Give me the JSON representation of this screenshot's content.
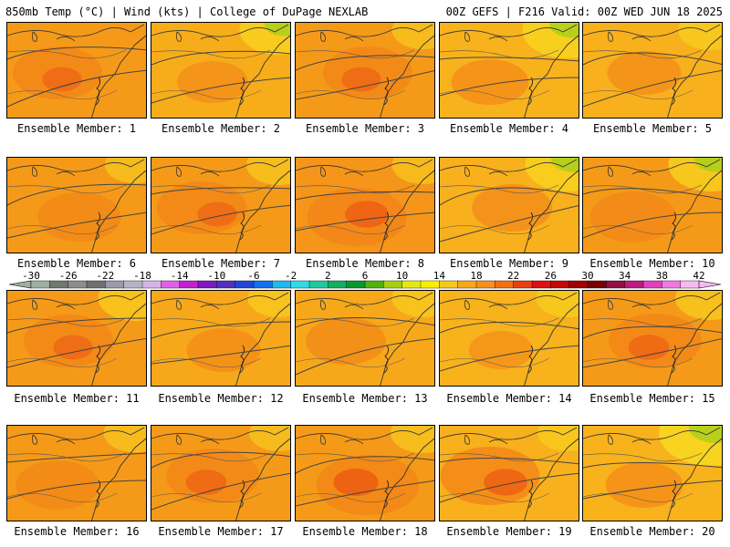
{
  "header": {
    "left": "850mb Temp (°C) | Wind (kts) | College of DuPage NEXLAB",
    "right": "00Z GEFS | F216 Valid: 00Z WED JUN 18 2025"
  },
  "caption_prefix": "Ensemble Member:",
  "members": [
    {
      "label": "Ensemble Member: 1",
      "base": "#f59a18",
      "warm": 0.55,
      "cool": 0.0
    },
    {
      "label": "Ensemble Member: 2",
      "base": "#f7ad1a",
      "warm": 0.25,
      "cool": 0.45
    },
    {
      "label": "Ensemble Member: 3",
      "base": "#f59a18",
      "warm": 0.55,
      "cool": 0.15
    },
    {
      "label": "Ensemble Member: 4",
      "base": "#f8b21c",
      "warm": 0.35,
      "cool": 0.65
    },
    {
      "label": "Ensemble Member: 5",
      "base": "#f8b01c",
      "warm": 0.3,
      "cool": 0.2
    },
    {
      "label": "Ensemble Member: 6",
      "base": "#f59a18",
      "warm": 0.45,
      "cool": 0.1
    },
    {
      "label": "Ensemble Member: 7",
      "base": "#f59a18",
      "warm": 0.55,
      "cool": 0.2
    },
    {
      "label": "Ensemble Member: 8",
      "base": "#f5951a",
      "warm": 0.7,
      "cool": 0.15
    },
    {
      "label": "Ensemble Member: 9",
      "base": "#f8b01c",
      "warm": 0.4,
      "cool": 0.55
    },
    {
      "label": "Ensemble Member: 10",
      "base": "#f59a18",
      "warm": 0.5,
      "cool": 0.55
    },
    {
      "label": "Ensemble Member: 11",
      "base": "#f59a18",
      "warm": 0.55,
      "cool": 0.35
    },
    {
      "label": "Ensemble Member: 12",
      "base": "#f7a81a",
      "warm": 0.3,
      "cool": 0.15
    },
    {
      "label": "Ensemble Member: 13",
      "base": "#f7a81a",
      "warm": 0.4,
      "cool": 0.15
    },
    {
      "label": "Ensemble Member: 14",
      "base": "#f8b21c",
      "warm": 0.15,
      "cool": 0.15
    },
    {
      "label": "Ensemble Member: 15",
      "base": "#f59a18",
      "warm": 0.6,
      "cool": 0.3
    },
    {
      "label": "Ensemble Member: 16",
      "base": "#f59a18",
      "warm": 0.45,
      "cool": 0.15
    },
    {
      "label": "Ensemble Member: 17",
      "base": "#f59a18",
      "warm": 0.6,
      "cool": 0.1
    },
    {
      "label": "Ensemble Member: 18",
      "base": "#f59a18",
      "warm": 0.75,
      "cool": 0.2
    },
    {
      "label": "Ensemble Member: 19",
      "base": "#f8b01c",
      "warm": 0.7,
      "cool": 0.1
    },
    {
      "label": "Ensemble Member: 20",
      "base": "#f8b21c",
      "warm": 0.35,
      "cool": 0.9
    }
  ],
  "colorbar": {
    "tick_labels": [
      "-30",
      "-26",
      "-22",
      "-18",
      "-14",
      "-10",
      "-6",
      "-2",
      "2",
      "6",
      "10",
      "14",
      "18",
      "22",
      "26",
      "30",
      "34",
      "38",
      "42"
    ],
    "colors": [
      "#a0b0a0",
      "#707870",
      "#8c8c8c",
      "#707070",
      "#9a9aa8",
      "#b4b4c8",
      "#d8b4e6",
      "#e060e8",
      "#c020d0",
      "#8018c0",
      "#5030c0",
      "#2048d8",
      "#1070f0",
      "#20b8f0",
      "#30d8e8",
      "#20c8a0",
      "#10b060",
      "#089830",
      "#50b010",
      "#a8d010",
      "#e8e810",
      "#f8f000",
      "#f8c818",
      "#f8a818",
      "#f89018",
      "#f07010",
      "#e84010",
      "#e01010",
      "#c80808",
      "#a00000",
      "#780000",
      "#901040",
      "#c01880",
      "#e040c0",
      "#f078e0",
      "#f8b8f0"
    ]
  }
}
